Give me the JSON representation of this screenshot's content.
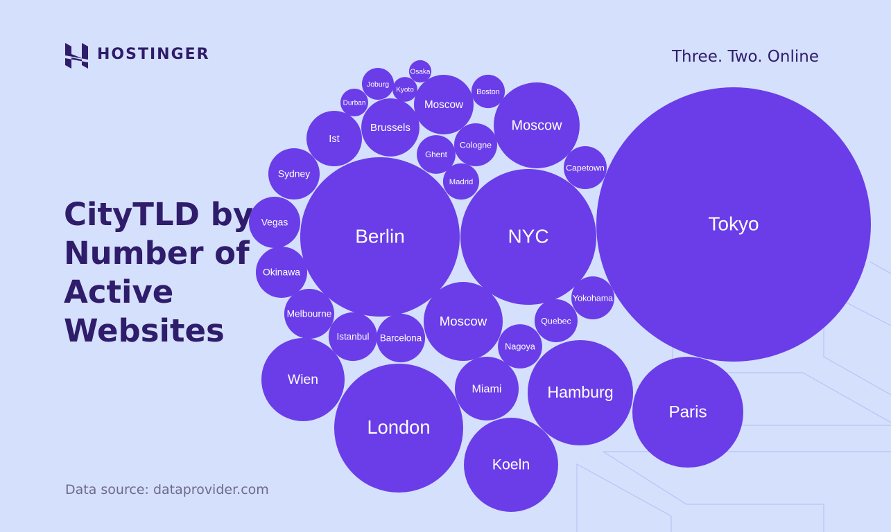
{
  "brand": "HOSTINGER",
  "tagline": "Three. Two. Online",
  "chart_data": {
    "type": "bubble",
    "title": "CityTLD by Number of Active Websites",
    "source": "Data source: dataprovider.com",
    "color": "#6a3de8",
    "categories": [
      "Tokyo",
      "Berlin",
      "NYC",
      "London",
      "Paris",
      "Hamburg",
      "Koeln",
      "Moscow",
      "Wien",
      "Moscow",
      "Miami",
      "Moscow",
      "Brussels",
      "Ist",
      "Sydney",
      "Vegas",
      "Okinawa",
      "Melbourne",
      "Istanbul",
      "Barcelona",
      "Nagoya",
      "Quebec",
      "Yokohama",
      "Capetown",
      "Cologne",
      "Ghent",
      "Madrid",
      "Boston",
      "Joburg",
      "Durban",
      "Kyoto",
      "Osaka"
    ],
    "values": [
      3920,
      1323,
      960,
      865,
      640,
      578,
      462,
      384,
      360,
      325,
      212,
      185,
      176,
      160,
      137,
      137,
      137,
      130,
      123,
      123,
      102,
      96,
      96,
      96,
      96,
      78,
      68,
      58,
      53,
      40,
      32,
      26
    ]
  }
}
